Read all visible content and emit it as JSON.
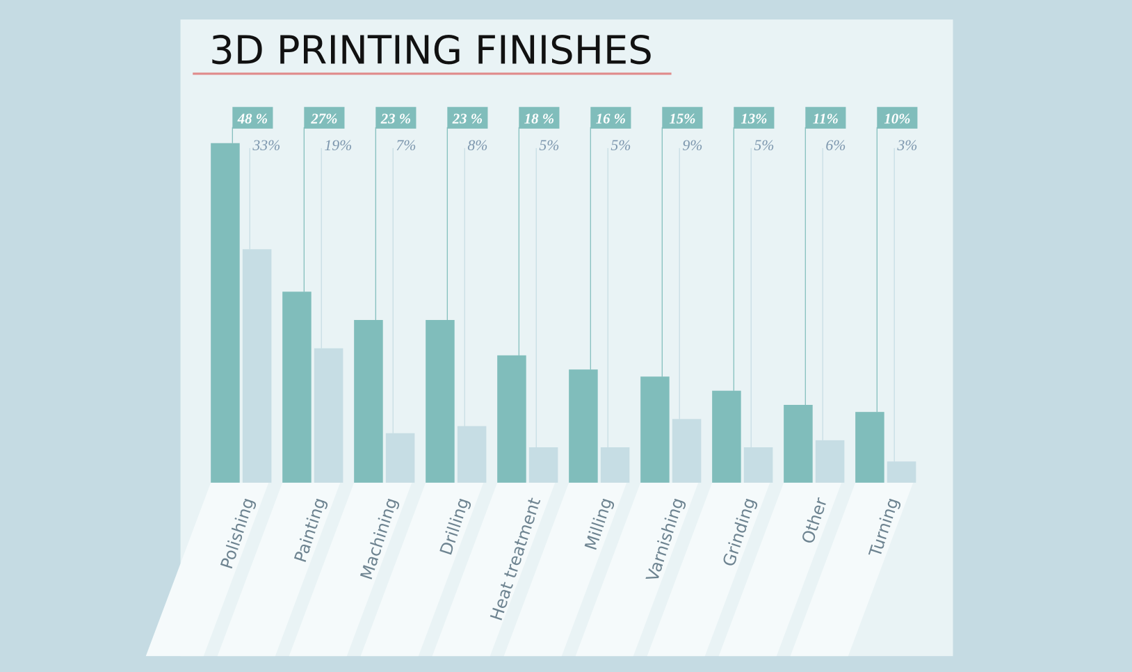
{
  "chart_data": {
    "type": "bar",
    "title": "3D PRINTING FINISHES",
    "categories": [
      "Polishing",
      "Painting",
      "Machining",
      "Drilling",
      "Heat treatment",
      "Milling",
      "Varnishing",
      "Grinding",
      "Other",
      "Turning"
    ],
    "series": [
      {
        "color": "#80bdbb",
        "values": [
          48,
          27,
          23,
          23,
          18,
          16,
          15,
          13,
          11,
          10
        ],
        "value_labels": [
          "48 %",
          "27%",
          "23 %",
          "23 %",
          "18 %",
          "16 %",
          "15%",
          "13%",
          "11%",
          "10%"
        ]
      },
      {
        "color": "#c6dde4",
        "values": [
          33,
          19,
          7,
          8,
          5,
          5,
          9,
          5,
          6,
          3
        ],
        "value_labels": [
          "33%",
          "19%",
          "7%",
          "8%",
          "5%",
          "5%",
          "9%",
          "5%",
          "6%",
          "3%"
        ]
      }
    ]
  }
}
